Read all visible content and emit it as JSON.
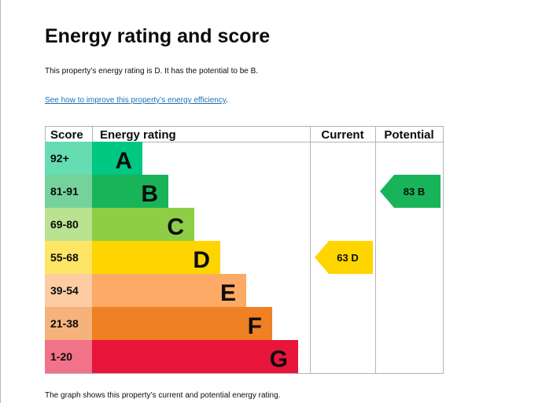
{
  "title": "Energy rating and score",
  "summary": "This property’s energy rating is D. It has the potential to be B.",
  "improve_link": {
    "text": "See how to improve this property’s energy efficiency",
    "suffix": "."
  },
  "footnote": "The graph shows this property’s current and potential energy rating.",
  "chart_data": {
    "type": "bar",
    "title": "",
    "columns": [
      "Score",
      "Energy rating",
      "Current",
      "Potential"
    ],
    "bands": [
      {
        "letter": "A",
        "score": "92+",
        "color": "#00c781",
        "score_bg": "#66dcb3"
      },
      {
        "letter": "B",
        "score": "81-91",
        "color": "#19b459",
        "score_bg": "#75d29b"
      },
      {
        "letter": "C",
        "score": "69-80",
        "color": "#8dce46",
        "score_bg": "#bbe290"
      },
      {
        "letter": "D",
        "score": "55-68",
        "color": "#ffd500",
        "score_bg": "#ffe566"
      },
      {
        "letter": "E",
        "score": "39-54",
        "color": "#fcaa65",
        "score_bg": "#fdcca3"
      },
      {
        "letter": "F",
        "score": "21-38",
        "color": "#ef8023",
        "score_bg": "#f5b37b"
      },
      {
        "letter": "G",
        "score": "1-20",
        "color": "#e9153b",
        "score_bg": "#f27389"
      }
    ],
    "current": {
      "value": 63,
      "band": "D",
      "label": "63  D",
      "color": "#ffd500"
    },
    "potential": {
      "value": 83,
      "band": "B",
      "label": "83  B",
      "color": "#19b459"
    }
  }
}
